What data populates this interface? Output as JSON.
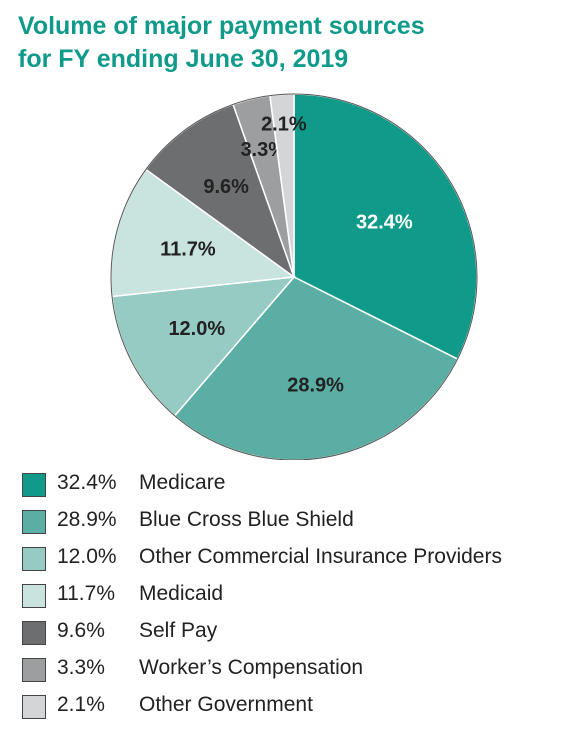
{
  "title_lines": [
    "Volume of major payment sources",
    "for FY ending June 30, 2019"
  ],
  "chart_data": {
    "type": "pie",
    "title": "Volume of major payment sources for FY ending June 30, 2019",
    "slices": [
      {
        "label": "Medicare",
        "value": 32.4,
        "display": "32.4%",
        "color": "#0f9a8a",
        "text_color": "#ffffff"
      },
      {
        "label": "Blue Cross Blue Shield",
        "value": 28.9,
        "display": "28.9%",
        "color": "#5aaea3",
        "text_color": "#222222"
      },
      {
        "label": "Other Commercial Insurance Providers",
        "value": 12.0,
        "display": "12.0%",
        "color": "#96cbc3",
        "text_color": "#222222"
      },
      {
        "label": "Medicaid",
        "value": 11.7,
        "display": "11.7%",
        "color": "#c9e3df",
        "text_color": "#222222"
      },
      {
        "label": "Self Pay",
        "value": 9.6,
        "display": "9.6%",
        "color": "#6d6e70",
        "text_color": "#222222"
      },
      {
        "label": "Worker’s Compensation",
        "value": 3.3,
        "display": "3.3%",
        "color": "#9d9ea0",
        "text_color": "#222222"
      },
      {
        "label": "Other Government",
        "value": 2.1,
        "display": "2.1%",
        "color": "#d4d5d7",
        "text_color": "#222222"
      }
    ],
    "legend_position": "bottom-left"
  }
}
